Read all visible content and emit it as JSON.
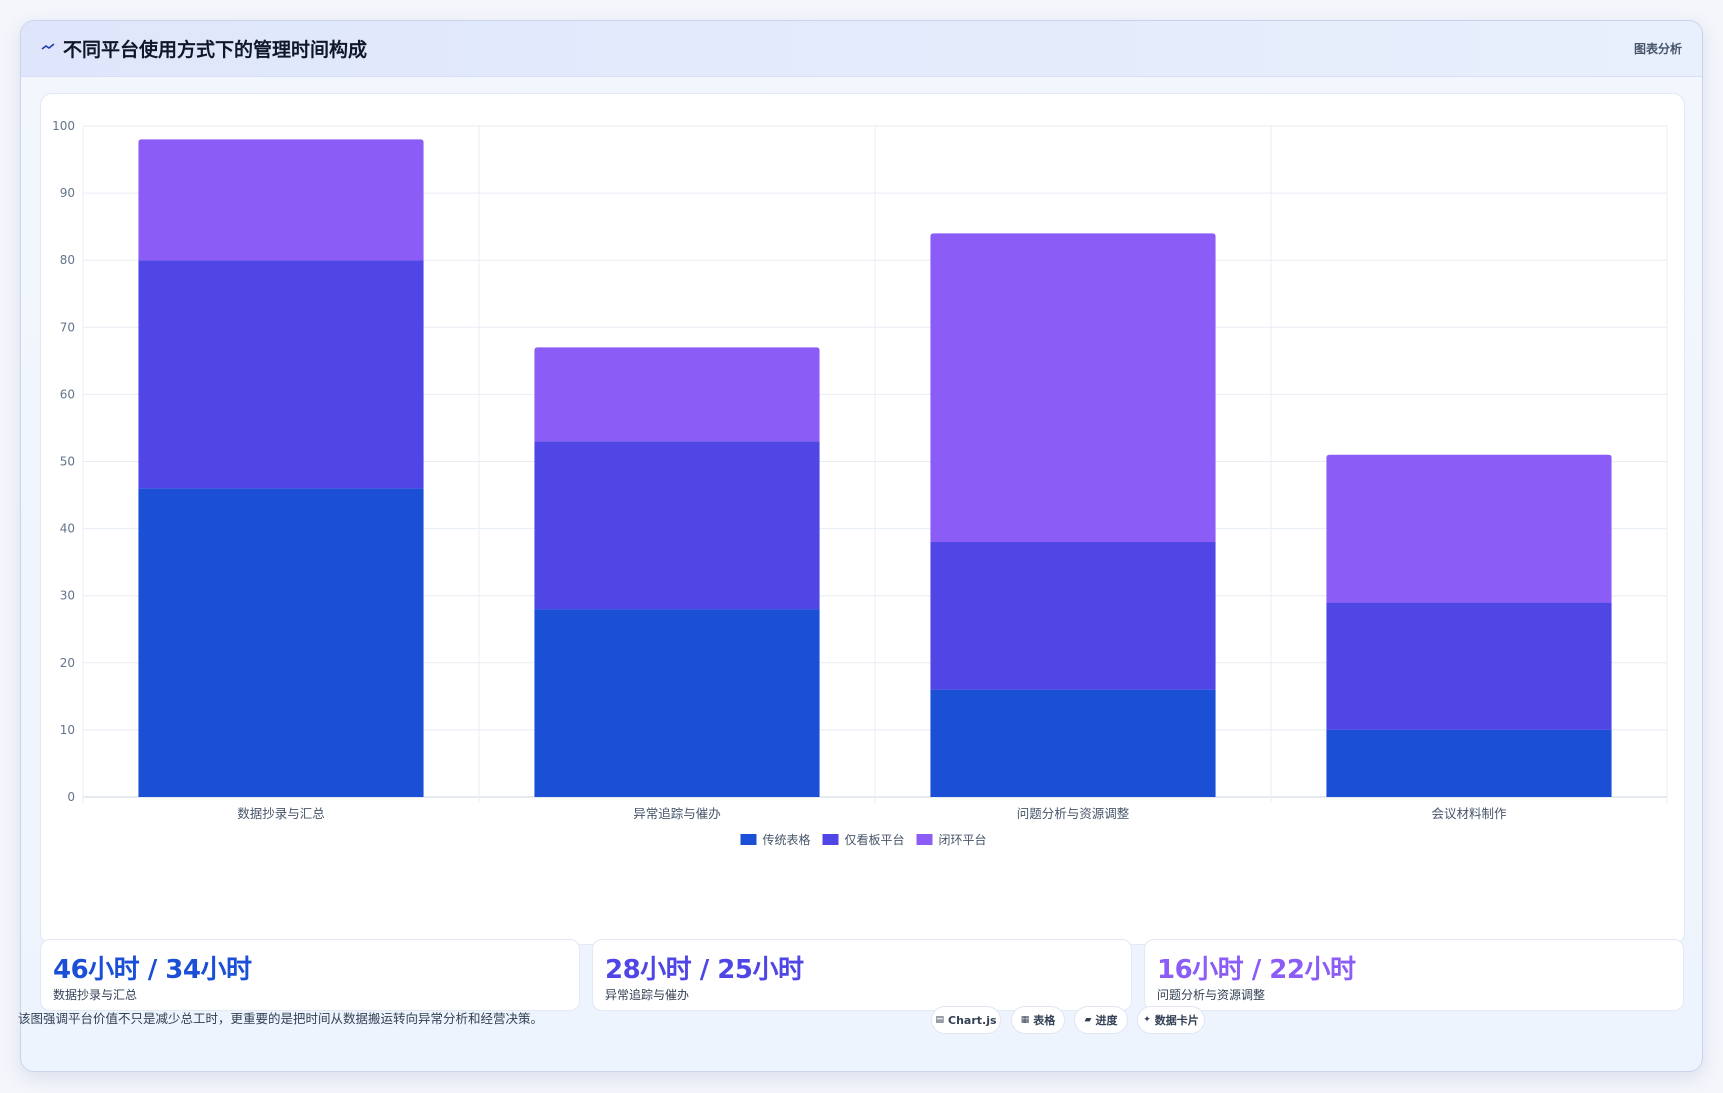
{
  "header": {
    "title": "不同平台使用方式下的管理时间构成",
    "tag": "图表分析"
  },
  "chart_data": {
    "type": "bar",
    "stacked": true,
    "categories": [
      "数据抄录与汇总",
      "异常追踪与催办",
      "问题分析与资源调整",
      "会议材料制作"
    ],
    "series": [
      {
        "name": "传统表格",
        "values": [
          46,
          28,
          16,
          10
        ],
        "color": "#1a4fd6"
      },
      {
        "name": "仅看板平台",
        "values": [
          34,
          25,
          22,
          19
        ],
        "color": "#4f46e5"
      },
      {
        "name": "闭环平台",
        "values": [
          18,
          14,
          46,
          22
        ],
        "color": "#8b5cf6"
      }
    ],
    "ylim": [
      0,
      100
    ],
    "yticks": [
      0,
      10,
      20,
      30,
      40,
      50,
      60,
      70,
      80,
      90,
      100
    ],
    "grid": true,
    "legend": "bottom"
  },
  "stats": [
    {
      "value": "46小时 / 34小时",
      "label": "数据抄录与汇总",
      "color": "#1a4fd6"
    },
    {
      "value": "28小时 / 25小时",
      "label": "异常追踪与催办",
      "color": "#4f46e5"
    },
    {
      "value": "16小时 / 22小时",
      "label": "问题分析与资源调整",
      "color": "#8b5cf6"
    }
  ],
  "footer": {
    "note": "该图强调平台价值不只是减少总工时，更重要的是把时间从数据搬运转向异常分析和经营决策。",
    "chips": [
      {
        "icon": "▤",
        "label": "Chart.js"
      },
      {
        "icon": "▦",
        "label": "表格"
      },
      {
        "icon": "▰",
        "label": "进度"
      },
      {
        "icon": "✦",
        "label": "数据卡片"
      }
    ]
  }
}
